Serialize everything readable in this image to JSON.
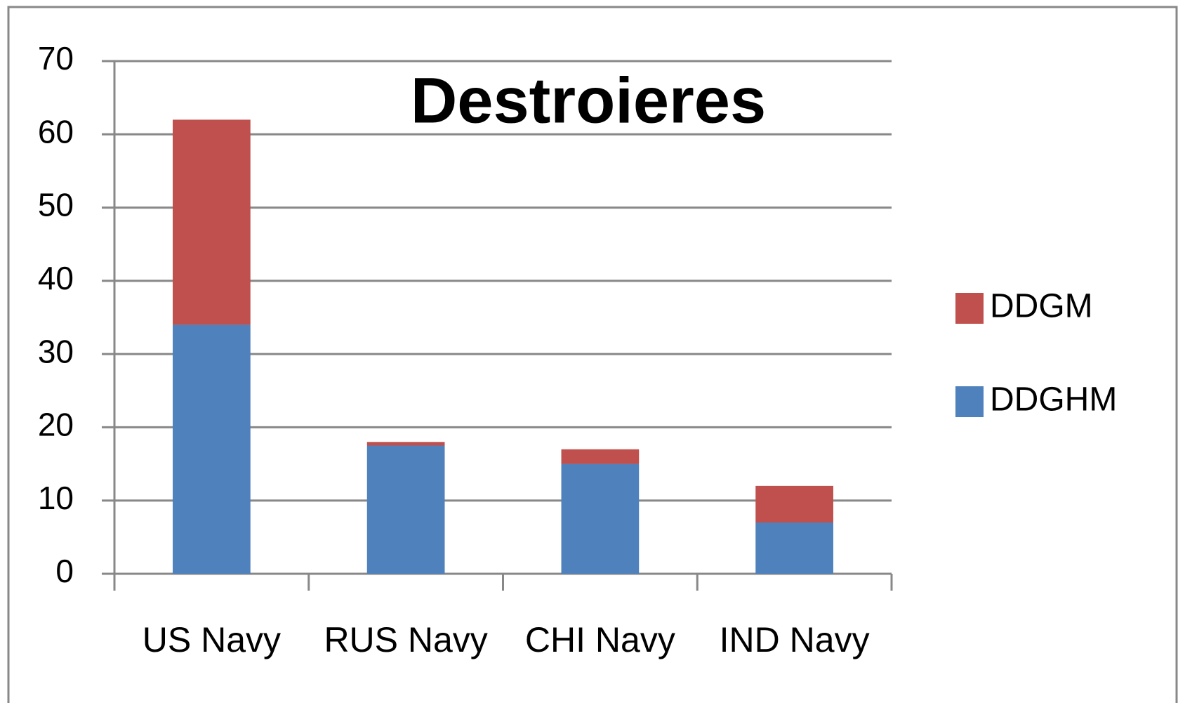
{
  "chart_data": {
    "type": "stacked_bar",
    "title": "Destroieres",
    "categories": [
      "US Navy",
      "RUS Navy",
      "CHI Navy",
      "IND Navy"
    ],
    "series": [
      {
        "name": "DDGHM",
        "color": "#4f81bd",
        "values": [
          34,
          17.5,
          15,
          7
        ]
      },
      {
        "name": "DDGM",
        "color": "#c0504d",
        "values": [
          28,
          0.5,
          2,
          5
        ]
      }
    ],
    "ylim": [
      0,
      70
    ],
    "yticks": [
      0,
      10,
      20,
      30,
      40,
      50,
      60,
      70
    ],
    "grid": true,
    "legend": "right"
  }
}
